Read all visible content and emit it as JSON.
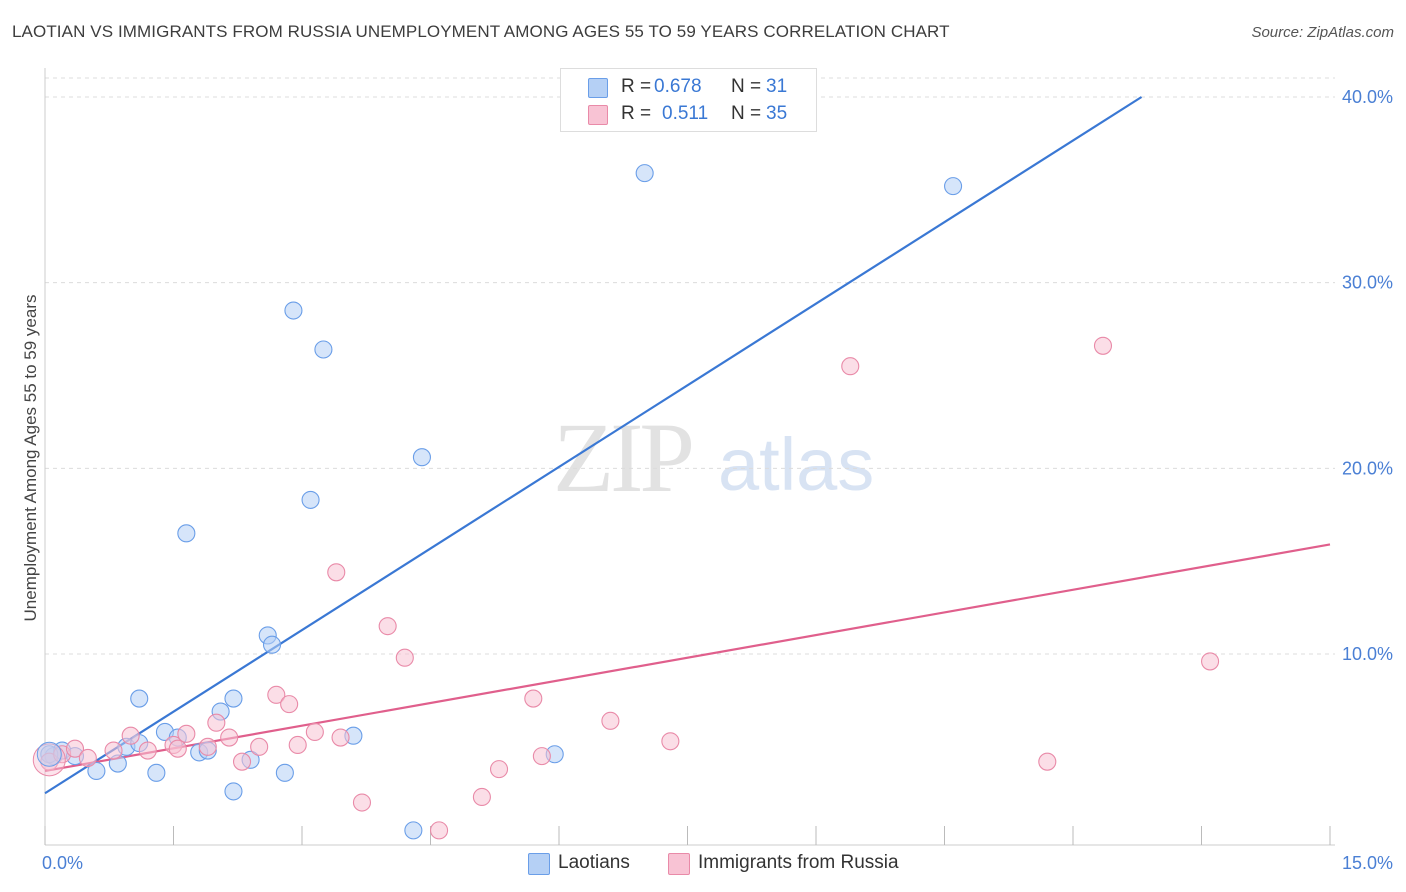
{
  "chart_data": {
    "type": "scatter",
    "title": "LAOTIAN VS IMMIGRANTS FROM RUSSIA UNEMPLOYMENT AMONG AGES 55 TO 59 YEARS CORRELATION CHART",
    "source": "Source: ZipAtlas.com",
    "xlabel": "",
    "ylabel": "Unemployment Among Ages 55 to 59 years",
    "xlim": [
      0,
      15
    ],
    "ylim": [
      0,
      40
    ],
    "x_tick_labels": [
      "0.0%",
      "15.0%"
    ],
    "y_ticks": [
      10,
      20,
      30,
      40
    ],
    "y_tick_labels": [
      "10.0%",
      "20.0%",
      "30.0%",
      "40.0%"
    ],
    "grid": true,
    "watermark": {
      "part1": "ZIP",
      "part2": "atlas"
    },
    "legend": {
      "placement": "top-center",
      "r_label": "R =",
      "n_label": "N =",
      "entries": [
        {
          "name": "Laotians",
          "r": "0.678",
          "n": "31",
          "color": "#6a9ee8",
          "fill": "#b5d0f5"
        },
        {
          "name": "Immigrants from Russia",
          "r": "0.511",
          "n": "35",
          "color": "#e98aa8",
          "fill": "#f8c3d4"
        }
      ]
    },
    "series": [
      {
        "name": "Laotians",
        "color": "#6a9ee8",
        "fill": "#b5d0f5",
        "trend": {
          "x": [
            0,
            12.8
          ],
          "y": [
            2.5,
            40
          ],
          "color": "#3a78d4"
        },
        "points": [
          {
            "x": 0.1,
            "y": 4.5
          },
          {
            "x": 0.2,
            "y": 4.8
          },
          {
            "x": 0.35,
            "y": 4.5
          },
          {
            "x": 0.6,
            "y": 3.7
          },
          {
            "x": 0.85,
            "y": 4.1
          },
          {
            "x": 0.95,
            "y": 5.0
          },
          {
            "x": 1.1,
            "y": 5.2
          },
          {
            "x": 1.1,
            "y": 7.6
          },
          {
            "x": 1.3,
            "y": 3.6
          },
          {
            "x": 1.4,
            "y": 5.8
          },
          {
            "x": 1.55,
            "y": 5.5
          },
          {
            "x": 1.65,
            "y": 16.5
          },
          {
            "x": 1.8,
            "y": 4.7
          },
          {
            "x": 1.9,
            "y": 4.8
          },
          {
            "x": 2.05,
            "y": 6.9
          },
          {
            "x": 2.2,
            "y": 7.6
          },
          {
            "x": 2.2,
            "y": 2.6
          },
          {
            "x": 2.4,
            "y": 4.3
          },
          {
            "x": 2.6,
            "y": 11.0
          },
          {
            "x": 2.65,
            "y": 10.5
          },
          {
            "x": 2.8,
            "y": 3.6
          },
          {
            "x": 2.9,
            "y": 28.5
          },
          {
            "x": 3.1,
            "y": 18.3
          },
          {
            "x": 3.25,
            "y": 26.4
          },
          {
            "x": 3.6,
            "y": 5.6
          },
          {
            "x": 4.3,
            "y": 0.5
          },
          {
            "x": 4.4,
            "y": 20.6
          },
          {
            "x": 5.95,
            "y": 4.6
          },
          {
            "x": 7.0,
            "y": 35.9
          },
          {
            "x": 10.6,
            "y": 35.2
          },
          {
            "x": 0.05,
            "y": 4.6
          }
        ]
      },
      {
        "name": "Immigrants from Russia",
        "color": "#e98aa8",
        "fill": "#f8c3d4",
        "trend": {
          "x": [
            0,
            15
          ],
          "y": [
            3.7,
            15.9
          ],
          "color": "#e05f8c"
        },
        "points": [
          {
            "x": 0.05,
            "y": 4.2
          },
          {
            "x": 0.2,
            "y": 4.6
          },
          {
            "x": 0.35,
            "y": 4.9
          },
          {
            "x": 0.5,
            "y": 4.4
          },
          {
            "x": 0.8,
            "y": 4.8
          },
          {
            "x": 1.0,
            "y": 5.6
          },
          {
            "x": 1.2,
            "y": 4.8
          },
          {
            "x": 1.5,
            "y": 5.1
          },
          {
            "x": 1.55,
            "y": 4.9
          },
          {
            "x": 1.65,
            "y": 5.7
          },
          {
            "x": 1.9,
            "y": 5.0
          },
          {
            "x": 2.0,
            "y": 6.3
          },
          {
            "x": 2.15,
            "y": 5.5
          },
          {
            "x": 2.3,
            "y": 4.2
          },
          {
            "x": 2.5,
            "y": 5.0
          },
          {
            "x": 2.7,
            "y": 7.8
          },
          {
            "x": 2.85,
            "y": 7.3
          },
          {
            "x": 2.95,
            "y": 5.1
          },
          {
            "x": 3.15,
            "y": 5.8
          },
          {
            "x": 3.4,
            "y": 14.4
          },
          {
            "x": 3.45,
            "y": 5.5
          },
          {
            "x": 3.7,
            "y": 2.0
          },
          {
            "x": 4.0,
            "y": 11.5
          },
          {
            "x": 4.2,
            "y": 9.8
          },
          {
            "x": 4.6,
            "y": 0.5
          },
          {
            "x": 5.1,
            "y": 2.3
          },
          {
            "x": 5.3,
            "y": 3.8
          },
          {
            "x": 5.7,
            "y": 7.6
          },
          {
            "x": 5.8,
            "y": 4.5
          },
          {
            "x": 6.6,
            "y": 6.4
          },
          {
            "x": 7.3,
            "y": 5.3
          },
          {
            "x": 9.4,
            "y": 25.5
          },
          {
            "x": 11.7,
            "y": 4.2
          },
          {
            "x": 12.35,
            "y": 26.6
          },
          {
            "x": 13.6,
            "y": 9.6
          }
        ]
      }
    ]
  }
}
